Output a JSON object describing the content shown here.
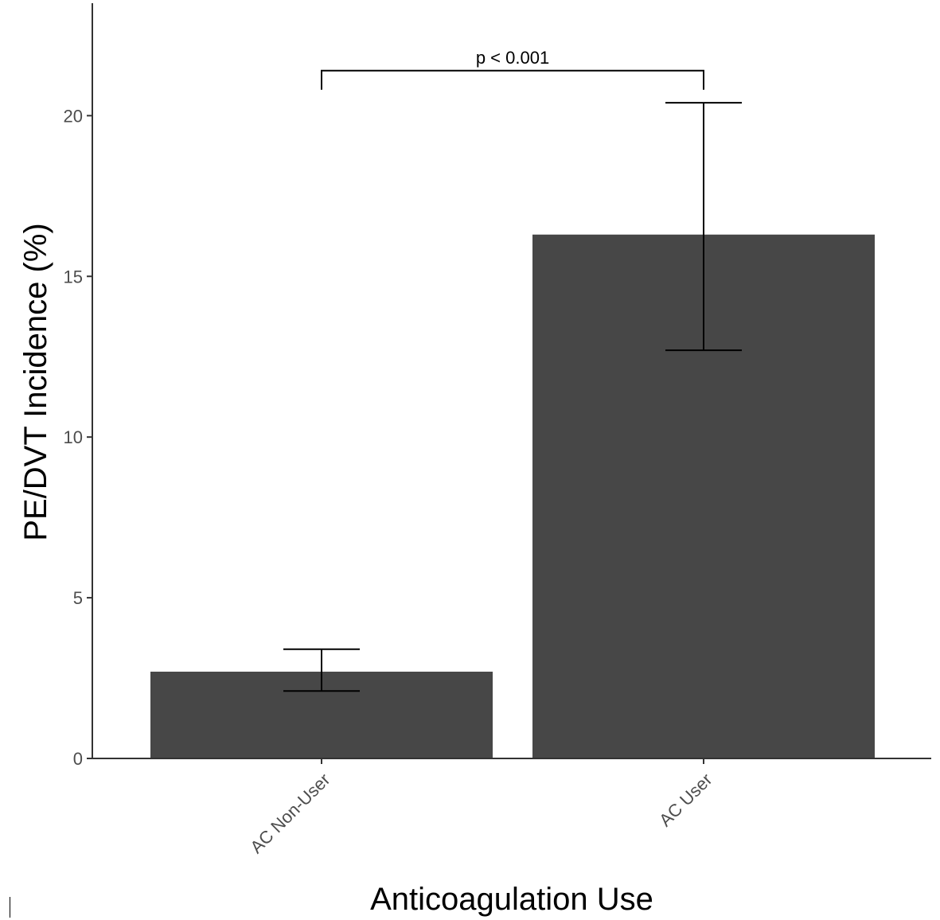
{
  "chart_data": {
    "type": "bar",
    "categories": [
      "AC Non-User",
      "AC User"
    ],
    "values": [
      2.7,
      16.3
    ],
    "error_low": [
      2.1,
      12.7
    ],
    "error_high": [
      3.4,
      20.4
    ],
    "xlabel": "Anticoagulation Use",
    "ylabel": "PE/DVT Incidence (%)",
    "ylim": [
      0,
      23.5
    ],
    "yticks": [
      0,
      5,
      10,
      15,
      20
    ],
    "grid": false,
    "bar_color": "#474747",
    "annotations": [
      {
        "text": "p < 0.001",
        "between": [
          "AC Non-User",
          "AC User"
        ],
        "y": 21.4
      }
    ]
  }
}
